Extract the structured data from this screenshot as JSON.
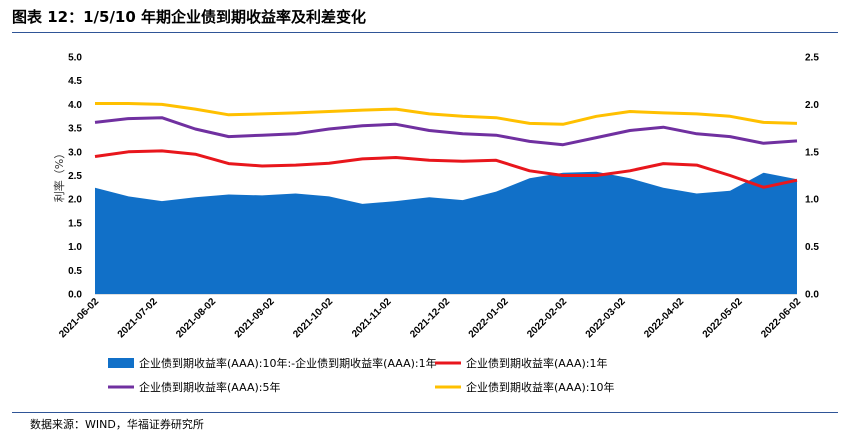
{
  "header": {
    "title": "图表 12：1/5/10 年期企业债到期收益率及利差变化"
  },
  "footer": {
    "source": "数据来源：WIND，华福证券研究所"
  },
  "colors": {
    "spread": "#1170c8",
    "y1": "#e8161c",
    "y5": "#7030a0",
    "y10": "#ffc000",
    "rule": "#2f5597"
  },
  "chart_data": {
    "type": "line",
    "ylabel": "利率（%）",
    "ylim_left": [
      0,
      5
    ],
    "ylim_right": [
      0,
      2.5
    ],
    "yticks_left": [
      "0.0",
      "0.5",
      "1.0",
      "1.5",
      "2.0",
      "2.5",
      "3.0",
      "3.5",
      "4.0",
      "4.5",
      "5.0"
    ],
    "yticks_right": [
      "0.0",
      "0.5",
      "1.0",
      "1.5",
      "2.0",
      "2.5"
    ],
    "x_ticks": [
      "2021-06-02",
      "2021-07-02",
      "2021-08-02",
      "2021-09-02",
      "2021-10-02",
      "2021-11-02",
      "2021-12-02",
      "2022-01-02",
      "2022-02-02",
      "2022-03-02",
      "2022-04-02",
      "2022-05-02",
      "2022-06-02"
    ],
    "legend_position": "bottom",
    "series": [
      {
        "name": "企业债到期收益率(AAA):10年:-企业债到期收益率(AAA):1年",
        "type": "area",
        "axis": "right",
        "values": [
          1.12,
          1.03,
          0.98,
          1.02,
          1.05,
          1.04,
          1.06,
          1.03,
          0.95,
          0.98,
          1.02,
          0.99,
          1.08,
          1.22,
          1.28,
          1.29,
          1.22,
          1.12,
          1.06,
          1.09,
          1.28,
          1.21
        ]
      },
      {
        "name": "企业债到期收益率(AAA):1年",
        "type": "line",
        "axis": "left",
        "values": [
          2.9,
          3.0,
          3.02,
          2.95,
          2.75,
          2.7,
          2.72,
          2.76,
          2.85,
          2.88,
          2.82,
          2.8,
          2.82,
          2.6,
          2.5,
          2.5,
          2.6,
          2.75,
          2.72,
          2.5,
          2.25,
          2.4
        ]
      },
      {
        "name": "企业债到期收益率(AAA):5年",
        "type": "line",
        "axis": "left",
        "values": [
          3.62,
          3.7,
          3.72,
          3.48,
          3.32,
          3.35,
          3.38,
          3.48,
          3.55,
          3.58,
          3.45,
          3.38,
          3.35,
          3.22,
          3.15,
          3.3,
          3.45,
          3.52,
          3.38,
          3.32,
          3.18,
          3.23
        ]
      },
      {
        "name": "企业债到期收益率(AAA):10年",
        "type": "line",
        "axis": "left",
        "values": [
          4.02,
          4.02,
          4.0,
          3.9,
          3.78,
          3.8,
          3.82,
          3.85,
          3.88,
          3.9,
          3.8,
          3.75,
          3.72,
          3.6,
          3.58,
          3.75,
          3.85,
          3.82,
          3.8,
          3.75,
          3.62,
          3.6
        ]
      }
    ]
  }
}
